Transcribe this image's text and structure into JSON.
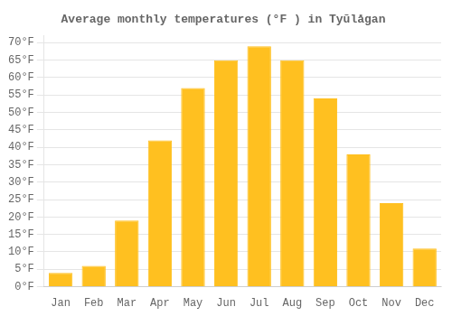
{
  "chart_data": {
    "type": "bar",
    "title": "Average monthly temperatures (°F ) in Tyūlå­gan",
    "categories": [
      "Jan",
      "Feb",
      "Mar",
      "Apr",
      "May",
      "Jun",
      "Jul",
      "Aug",
      "Sep",
      "Oct",
      "Nov",
      "Dec"
    ],
    "values": [
      4,
      6,
      19,
      42,
      57,
      65,
      69,
      65,
      54,
      38,
      24,
      11
    ],
    "color": "#FFC020",
    "ylim": [
      0,
      72
    ],
    "yticks": [
      {
        "value": 0,
        "label": "0°F"
      },
      {
        "value": 5,
        "label": "5°F"
      },
      {
        "value": 10,
        "label": "10°F"
      },
      {
        "value": 15,
        "label": "15°F"
      },
      {
        "value": 20,
        "label": "20°F"
      },
      {
        "value": 25,
        "label": "25°F"
      },
      {
        "value": 30,
        "label": "30°F"
      },
      {
        "value": 35,
        "label": "35°F"
      },
      {
        "value": 40,
        "label": "40°F"
      },
      {
        "value": 45,
        "label": "45°F"
      },
      {
        "value": 50,
        "label": "50°F"
      },
      {
        "value": 55,
        "label": "55°F"
      },
      {
        "value": 60,
        "label": "60°F"
      },
      {
        "value": 65,
        "label": "65°F"
      },
      {
        "value": 70,
        "label": "70°F"
      }
    ],
    "grid": true
  }
}
